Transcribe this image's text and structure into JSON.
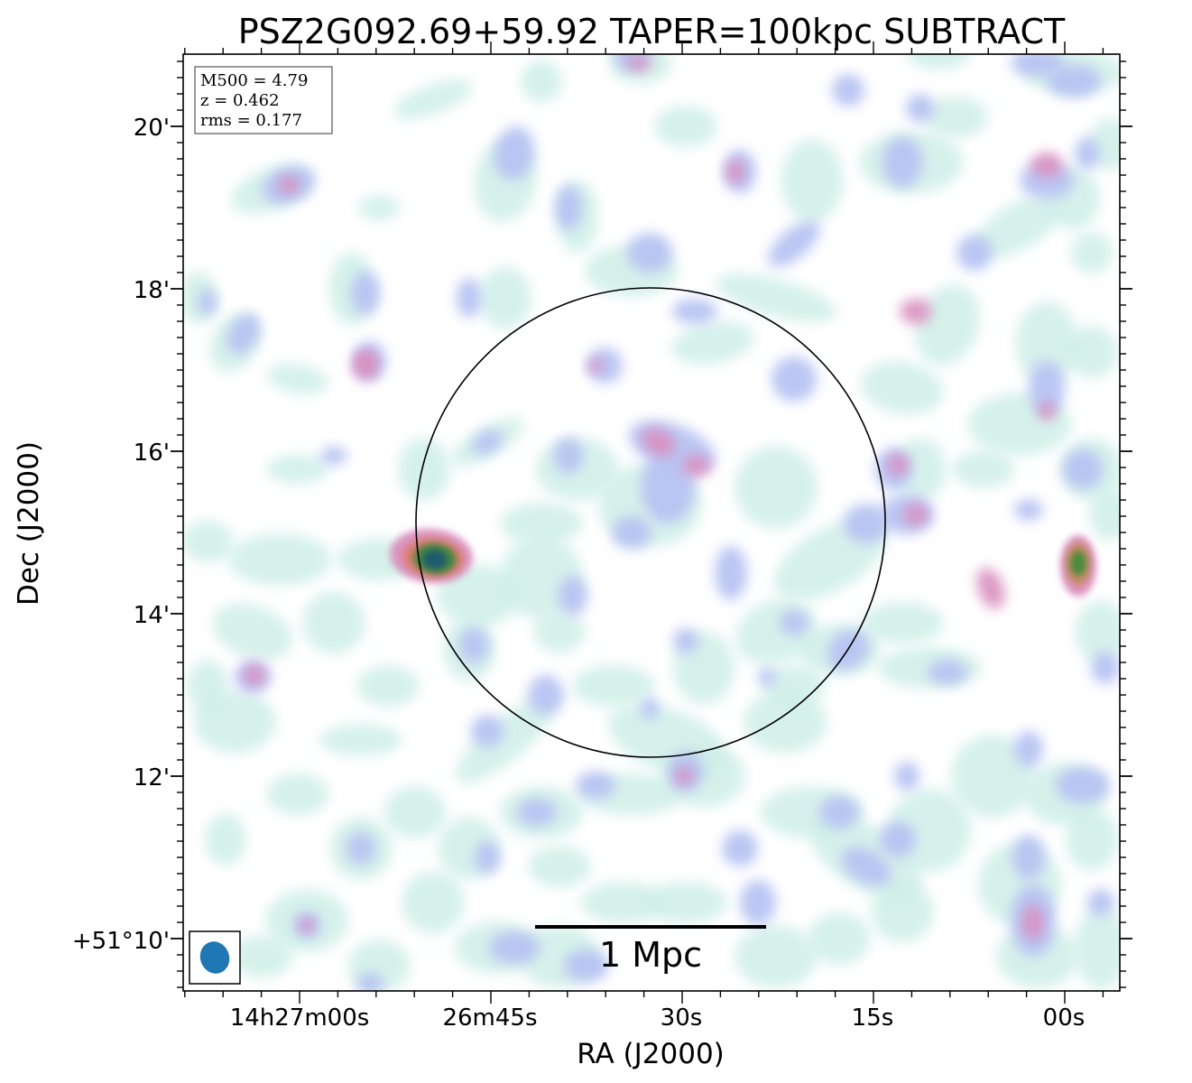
{
  "chart_data": {
    "type": "heatmap",
    "title": "PSZ2G092.69+59.92 TAPER=100kpc SUBTRACT",
    "xlabel": "RA (J2000)",
    "ylabel": "Dec (J2000)",
    "x_ticks": [
      "14h27m00s",
      "26m45s",
      "30s",
      "15s",
      "00s"
    ],
    "y_ticks": [
      "20'",
      "18'",
      "16'",
      "14'",
      "12'",
      "+51°10'"
    ],
    "info_box": [
      "M500 = 4.79",
      "z = 0.462",
      "rms = 0.177"
    ],
    "scalebar_label": "1 Mpc",
    "colors": {
      "low": "#cfeee8",
      "mid": "#b7c3f2",
      "high": "#d98fc0",
      "peak": "#1f5a6e",
      "beam": "#1f77b4"
    }
  }
}
